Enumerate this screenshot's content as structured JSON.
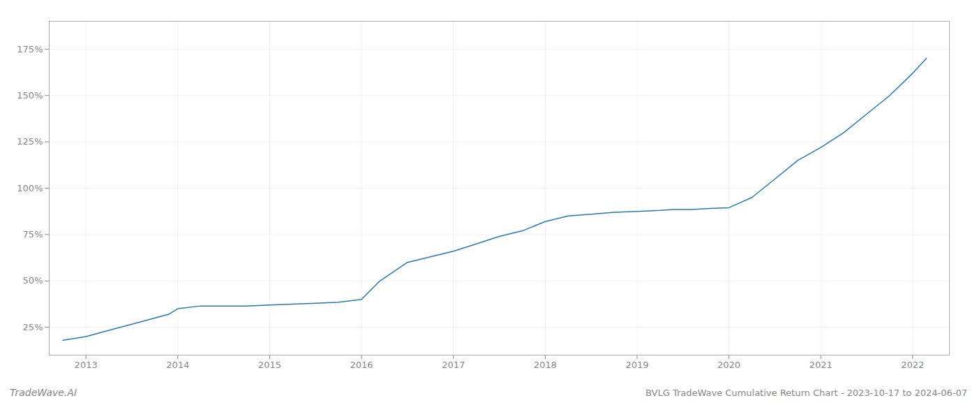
{
  "chart_data": {
    "type": "line",
    "title": "BVLG TradeWave Cumulative Return Chart - 2023-10-17 to 2024-06-07",
    "annotations": [
      "TradeWave.AI"
    ],
    "x": [
      2012.75,
      2013.0,
      2013.3,
      2013.6,
      2013.9,
      2014.0,
      2014.25,
      2014.5,
      2014.75,
      2015.0,
      2015.1,
      2015.25,
      2015.5,
      2015.75,
      2016.0,
      2016.2,
      2016.5,
      2016.75,
      2017.0,
      2017.25,
      2017.5,
      2017.75,
      2018.0,
      2018.25,
      2018.5,
      2018.75,
      2019.0,
      2019.25,
      2019.4,
      2019.6,
      2019.75,
      2020.0,
      2020.25,
      2020.5,
      2020.75,
      2021.0,
      2021.25,
      2021.5,
      2021.75,
      2022.0,
      2022.15
    ],
    "values": [
      18,
      20,
      24,
      28,
      32,
      35,
      36.5,
      36.5,
      36.5,
      37,
      37.2,
      37.5,
      38,
      38.5,
      40,
      50,
      60,
      63,
      66,
      70,
      74,
      77,
      82,
      85,
      86,
      87,
      87.5,
      88,
      88.5,
      88.5,
      89,
      89.5,
      95,
      105,
      115,
      122,
      130,
      140,
      150,
      162,
      170
    ],
    "color": "#2979b0",
    "xlim": [
      2012.6,
      2022.4
    ],
    "xticks": [
      2013,
      2014,
      2015,
      2016,
      2017,
      2018,
      2019,
      2020,
      2021,
      2022
    ],
    "ylim": [
      10,
      190
    ],
    "yticks": [
      {
        "value": 25,
        "label": "25%"
      },
      {
        "value": 50,
        "label": "50%"
      },
      {
        "value": 75,
        "label": "75%"
      },
      {
        "value": 100,
        "label": "100%"
      },
      {
        "value": 125,
        "label": "125%"
      },
      {
        "value": 150,
        "label": "150%"
      },
      {
        "value": 175,
        "label": "175%"
      }
    ],
    "grid": true
  }
}
